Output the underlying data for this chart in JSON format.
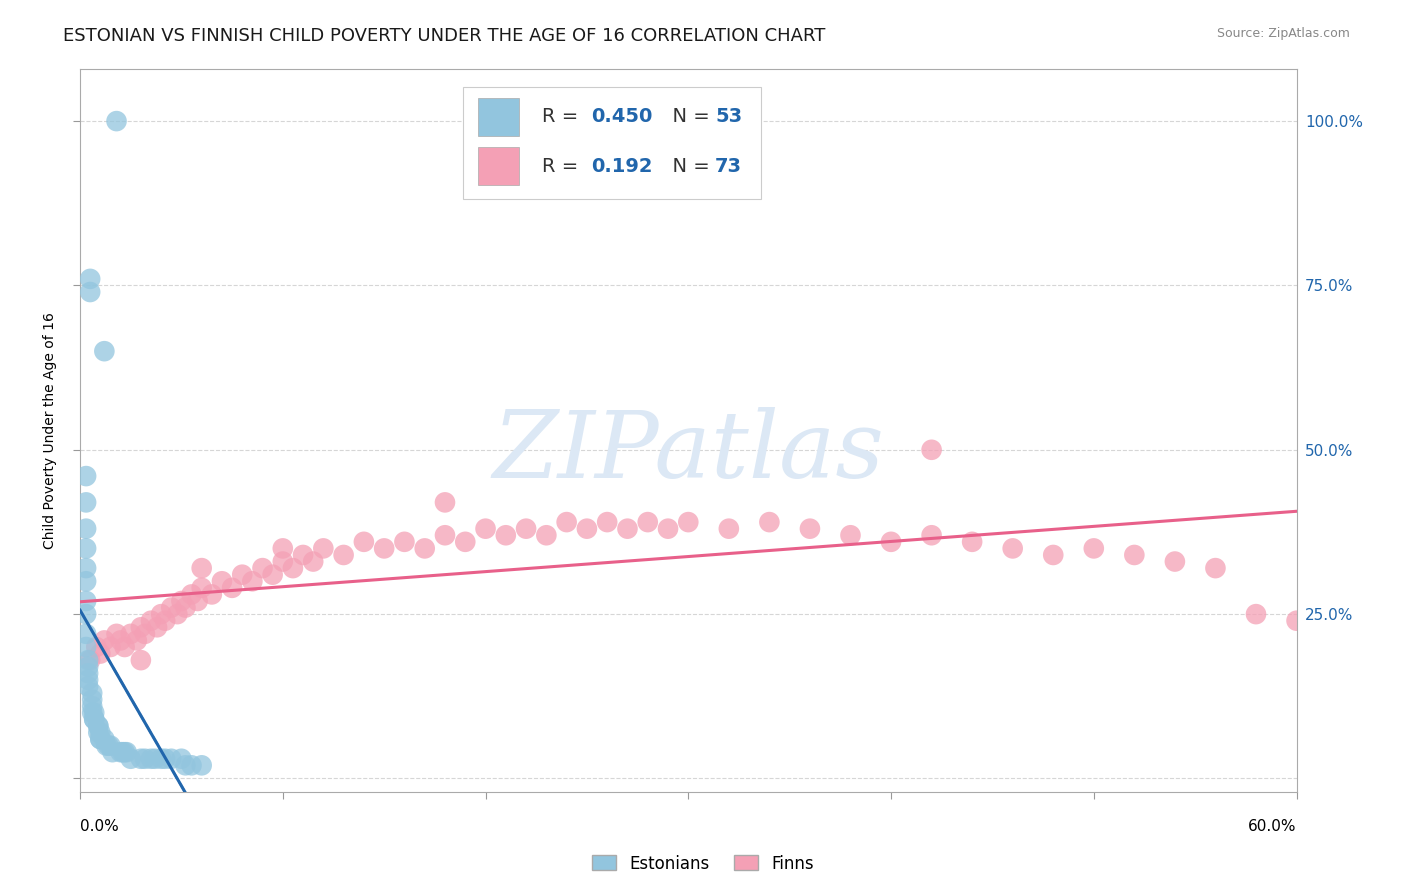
{
  "title": "ESTONIAN VS FINNISH CHILD POVERTY UNDER THE AGE OF 16 CORRELATION CHART",
  "source": "Source: ZipAtlas.com",
  "ylabel": "Child Poverty Under the Age of 16",
  "xlim": [
    0.0,
    0.6
  ],
  "ylim": [
    -0.02,
    1.08
  ],
  "estonian_R": 0.45,
  "estonian_N": 53,
  "finnish_R": 0.192,
  "finnish_N": 73,
  "estonian_color": "#92c5de",
  "finnish_color": "#f4a0b5",
  "estonian_line_color": "#2166ac",
  "finnish_line_color": "#e8608a",
  "bg_color": "#ffffff",
  "watermark_text": "ZIPatlas",
  "watermark_color": "#dce8f5",
  "title_fontsize": 13,
  "label_fontsize": 10,
  "tick_fontsize": 11,
  "legend_fontsize": 14,
  "est_x": [
    0.018,
    0.005,
    0.005,
    0.012,
    0.003,
    0.003,
    0.003,
    0.003,
    0.003,
    0.003,
    0.003,
    0.003,
    0.003,
    0.003,
    0.004,
    0.004,
    0.004,
    0.004,
    0.004,
    0.006,
    0.006,
    0.006,
    0.006,
    0.007,
    0.007,
    0.007,
    0.009,
    0.009,
    0.009,
    0.01,
    0.01,
    0.01,
    0.012,
    0.013,
    0.014,
    0.015,
    0.016,
    0.02,
    0.021,
    0.022,
    0.023,
    0.025,
    0.03,
    0.032,
    0.035,
    0.037,
    0.04,
    0.042,
    0.045,
    0.05,
    0.052,
    0.055,
    0.06
  ],
  "est_y": [
    1.0,
    0.76,
    0.74,
    0.65,
    0.46,
    0.42,
    0.38,
    0.35,
    0.32,
    0.3,
    0.27,
    0.25,
    0.22,
    0.2,
    0.18,
    0.17,
    0.16,
    0.15,
    0.14,
    0.13,
    0.12,
    0.11,
    0.1,
    0.1,
    0.09,
    0.09,
    0.08,
    0.08,
    0.07,
    0.07,
    0.06,
    0.06,
    0.06,
    0.05,
    0.05,
    0.05,
    0.04,
    0.04,
    0.04,
    0.04,
    0.04,
    0.03,
    0.03,
    0.03,
    0.03,
    0.03,
    0.03,
    0.03,
    0.03,
    0.03,
    0.02,
    0.02,
    0.02
  ],
  "fin_x": [
    0.005,
    0.008,
    0.01,
    0.012,
    0.015,
    0.018,
    0.02,
    0.022,
    0.025,
    0.028,
    0.03,
    0.032,
    0.035,
    0.038,
    0.04,
    0.042,
    0.045,
    0.048,
    0.05,
    0.052,
    0.055,
    0.058,
    0.06,
    0.065,
    0.07,
    0.075,
    0.08,
    0.085,
    0.09,
    0.095,
    0.1,
    0.105,
    0.11,
    0.115,
    0.12,
    0.13,
    0.14,
    0.15,
    0.16,
    0.17,
    0.18,
    0.19,
    0.2,
    0.21,
    0.22,
    0.23,
    0.24,
    0.25,
    0.26,
    0.27,
    0.28,
    0.29,
    0.3,
    0.32,
    0.34,
    0.36,
    0.38,
    0.4,
    0.42,
    0.44,
    0.46,
    0.48,
    0.5,
    0.52,
    0.54,
    0.56,
    0.58,
    0.6,
    0.42,
    0.18,
    0.1,
    0.06,
    0.03
  ],
  "fin_y": [
    0.18,
    0.2,
    0.19,
    0.21,
    0.2,
    0.22,
    0.21,
    0.2,
    0.22,
    0.21,
    0.23,
    0.22,
    0.24,
    0.23,
    0.25,
    0.24,
    0.26,
    0.25,
    0.27,
    0.26,
    0.28,
    0.27,
    0.29,
    0.28,
    0.3,
    0.29,
    0.31,
    0.3,
    0.32,
    0.31,
    0.33,
    0.32,
    0.34,
    0.33,
    0.35,
    0.34,
    0.36,
    0.35,
    0.36,
    0.35,
    0.37,
    0.36,
    0.38,
    0.37,
    0.38,
    0.37,
    0.39,
    0.38,
    0.39,
    0.38,
    0.39,
    0.38,
    0.39,
    0.38,
    0.39,
    0.38,
    0.37,
    0.36,
    0.37,
    0.36,
    0.35,
    0.34,
    0.35,
    0.34,
    0.33,
    0.32,
    0.25,
    0.24,
    0.5,
    0.42,
    0.35,
    0.32,
    0.18
  ]
}
